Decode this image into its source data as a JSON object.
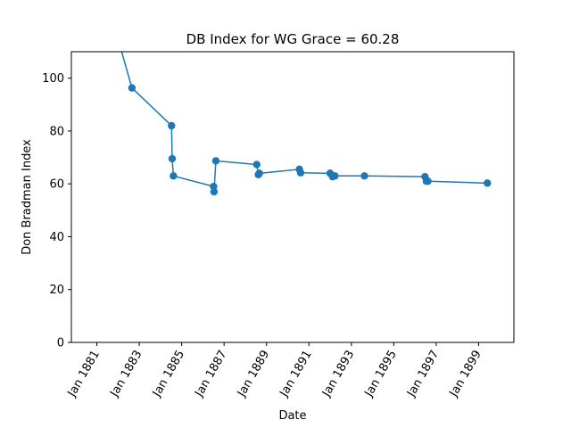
{
  "chart_data": {
    "type": "line",
    "title": "DB Index for WG Grace = 60.28",
    "xlabel": "Date",
    "ylabel": "Don Bradman Index",
    "ylim": [
      0,
      110
    ],
    "xlim": [
      "1879-10-20",
      "1900-09-01"
    ],
    "yticks": [
      0,
      20,
      40,
      60,
      80,
      100
    ],
    "xticks": [
      {
        "date": "1881-01-01",
        "label": "Jan 1881"
      },
      {
        "date": "1883-01-01",
        "label": "Jan 1883"
      },
      {
        "date": "1885-01-01",
        "label": "Jan 1885"
      },
      {
        "date": "1887-01-01",
        "label": "Jan 1887"
      },
      {
        "date": "1889-01-01",
        "label": "Jan 1889"
      },
      {
        "date": "1891-01-01",
        "label": "Jan 1891"
      },
      {
        "date": "1893-01-01",
        "label": "Jan 1893"
      },
      {
        "date": "1895-01-01",
        "label": "Jan 1895"
      },
      {
        "date": "1897-01-01",
        "label": "Jan 1897"
      },
      {
        "date": "1899-01-01",
        "label": "Jan 1899"
      }
    ],
    "series": [
      {
        "color": "#1f77b4",
        "points": [
          {
            "x": "1880-09-06",
            "y": 152.0
          },
          {
            "x": "1882-08-28",
            "y": 96.3
          },
          {
            "x": "1884-07-10",
            "y": 82.0
          },
          {
            "x": "1884-07-21",
            "y": 69.5
          },
          {
            "x": "1884-08-11",
            "y": 63.0
          },
          {
            "x": "1886-07-05",
            "y": 59.0
          },
          {
            "x": "1886-07-12",
            "y": 57.0
          },
          {
            "x": "1886-08-12",
            "y": 68.7
          },
          {
            "x": "1888-07-16",
            "y": 67.3
          },
          {
            "x": "1888-08-13",
            "y": 63.5
          },
          {
            "x": "1888-08-30",
            "y": 64.0
          },
          {
            "x": "1890-07-21",
            "y": 65.5
          },
          {
            "x": "1890-08-11",
            "y": 64.2
          },
          {
            "x": "1892-01-01",
            "y": 64.0
          },
          {
            "x": "1892-02-12",
            "y": 62.7
          },
          {
            "x": "1892-03-24",
            "y": 63.0
          },
          {
            "x": "1893-08-14",
            "y": 63.0
          },
          {
            "x": "1896-06-22",
            "y": 62.7
          },
          {
            "x": "1896-07-16",
            "y": 61.0
          },
          {
            "x": "1896-08-10",
            "y": 61.0
          },
          {
            "x": "1899-06-01",
            "y": 60.28
          }
        ]
      }
    ]
  }
}
